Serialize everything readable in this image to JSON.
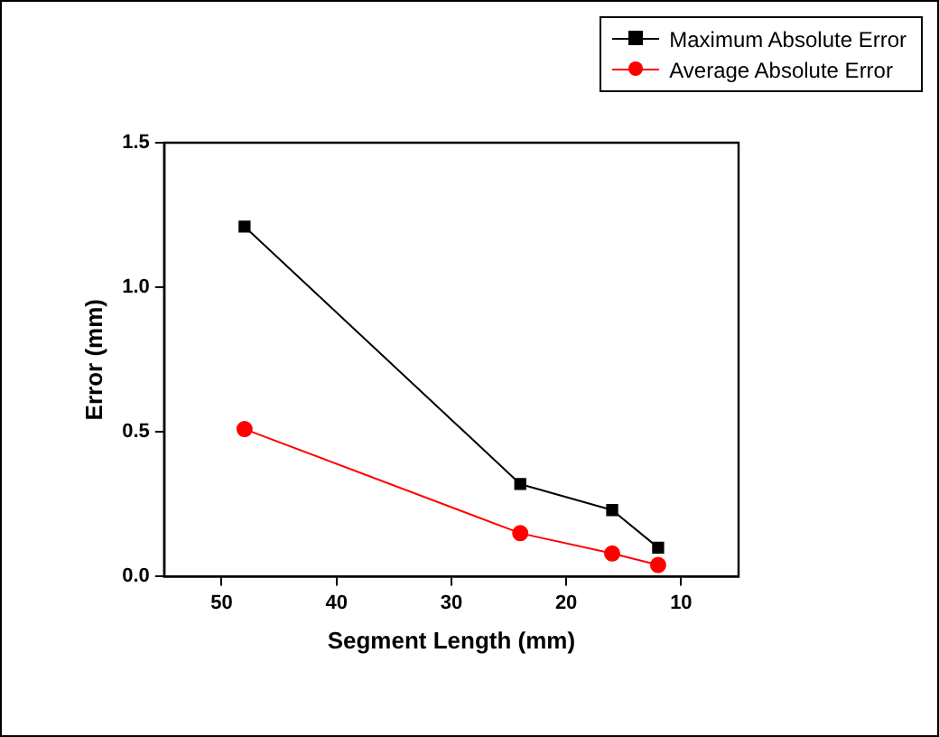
{
  "chart_data": {
    "type": "line",
    "xlabel": "Segment Length (mm)",
    "ylabel": "Error (mm)",
    "xlim": [
      55,
      5
    ],
    "xticks": [
      50,
      40,
      30,
      20,
      10
    ],
    "ylim": [
      0,
      1.5
    ],
    "yticks": [
      {
        "value": 0,
        "label": "0.0"
      },
      {
        "value": 0.5,
        "label": "0.5"
      },
      {
        "value": 1,
        "label": "1.0"
      },
      {
        "value": 1.5,
        "label": "1.5"
      }
    ],
    "x": [
      48,
      24,
      16,
      12
    ],
    "series": [
      {
        "name": "Maximum Absolute Error",
        "color": "#000000",
        "marker": "square",
        "values": [
          1.21,
          0.32,
          0.23,
          0.1
        ]
      },
      {
        "name": "Average Absolute Error",
        "color": "#ff0000",
        "marker": "circle",
        "values": [
          0.51,
          0.15,
          0.08,
          0.04
        ]
      }
    ],
    "legend": "top right",
    "grid": false
  }
}
